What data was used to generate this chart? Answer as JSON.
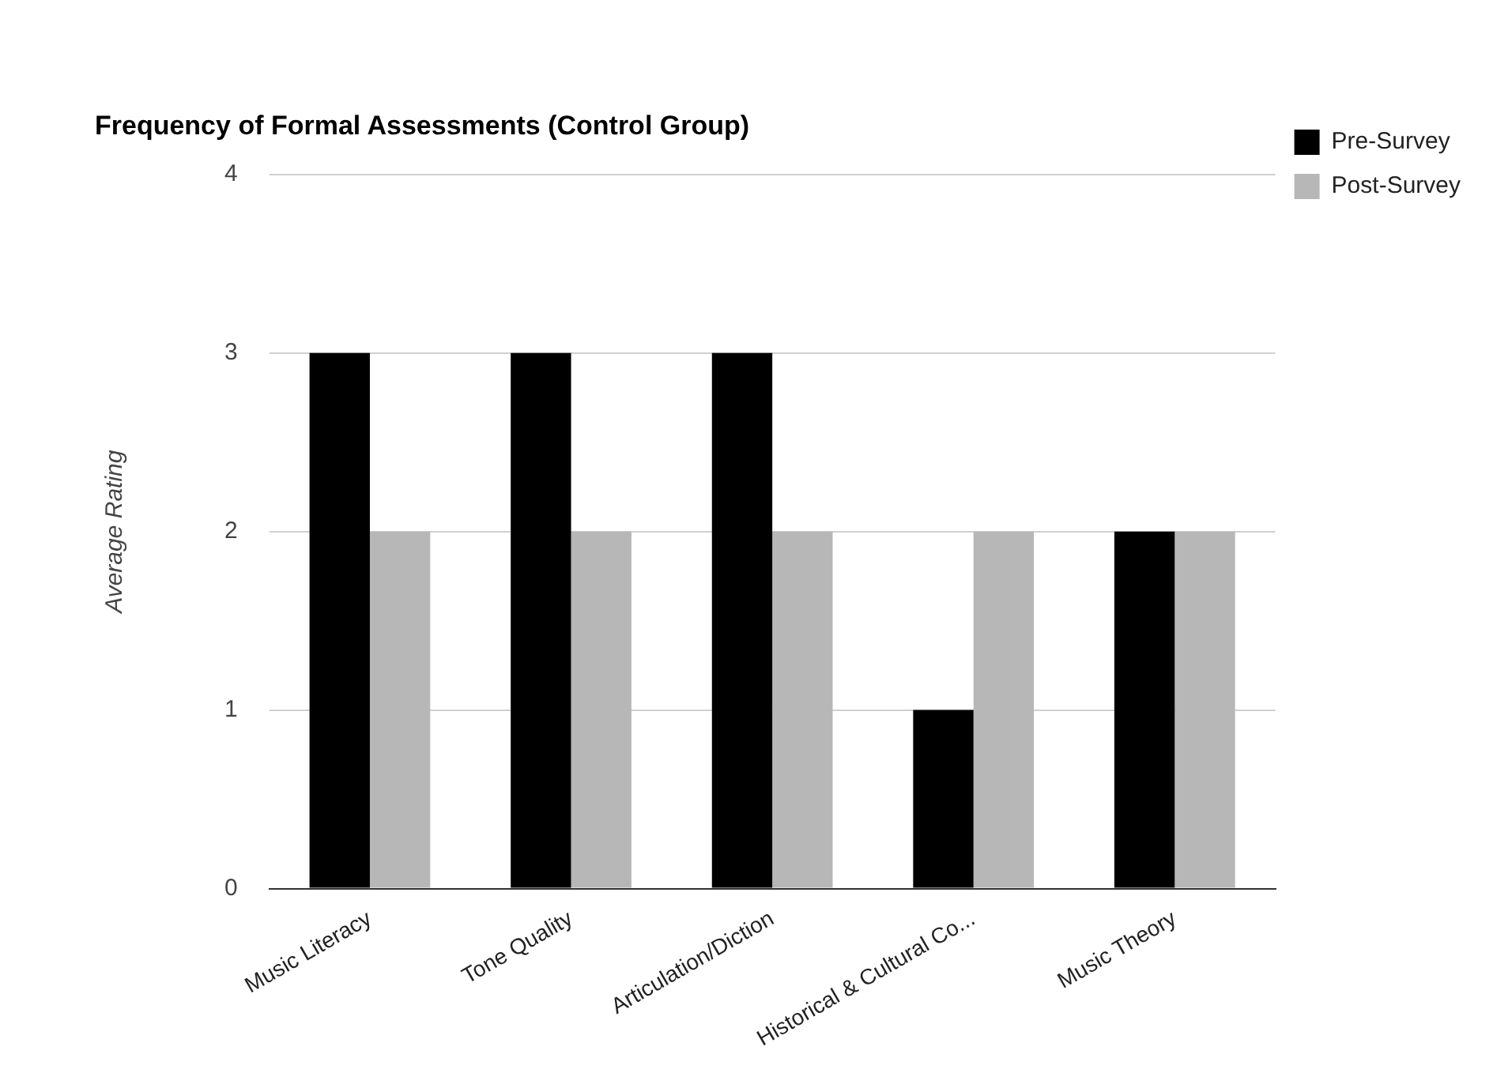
{
  "chart_data": {
    "type": "bar",
    "title": "Frequency of Formal Assessments (Control Group)",
    "ylabel": "Average Rating",
    "categories": [
      "Music Literacy",
      "Tone Quality",
      "Articulation/Diction",
      "Historical & Cultural Co...",
      "Music Theory"
    ],
    "series": [
      {
        "name": "Pre-Survey",
        "color": "#000000",
        "values": [
          3,
          3,
          3,
          1,
          2
        ]
      },
      {
        "name": "Post-Survey",
        "color": "#b7b7b7",
        "values": [
          2,
          2,
          2,
          2,
          2
        ]
      }
    ],
    "ylim": [
      0,
      4
    ],
    "yticks": [
      0,
      1,
      2,
      3,
      4
    ],
    "grid": "y",
    "legend": "top right"
  }
}
